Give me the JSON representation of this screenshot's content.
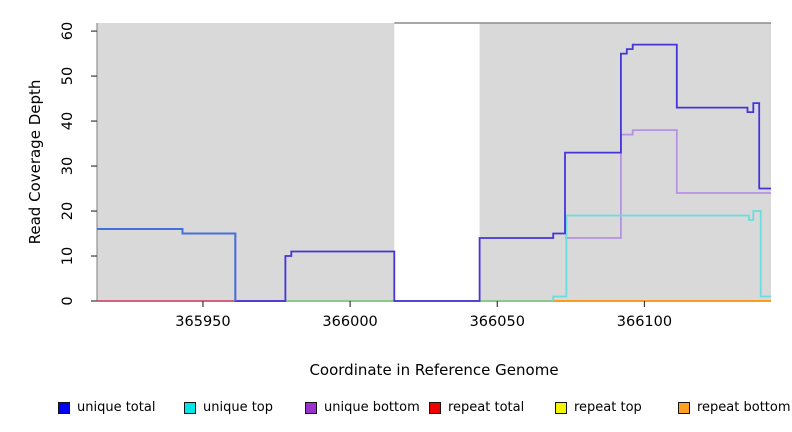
{
  "chart_data": {
    "type": "line",
    "subtype": "step",
    "title": "",
    "xlabel": "Coordinate in Reference Genome",
    "ylabel": "Read Coverage Depth",
    "xlim": [
      365914,
      366143
    ],
    "ylim": [
      0,
      61.8
    ],
    "x_ticks": [
      365950,
      366000,
      366050,
      366100
    ],
    "y_ticks": [
      0,
      10,
      20,
      30,
      40,
      50,
      60
    ],
    "grid": false,
    "legend_position": "bottom",
    "plot_bg_color": "#d9d9d9",
    "no_data_region": {
      "from": 366015,
      "to": 366044
    },
    "zero_line_segments": [
      {
        "name": "repeat total",
        "color": "#d04f6a",
        "from": 365914,
        "to": 365978,
        "value": 0
      },
      {
        "name": "unique top + repeat top overlap",
        "color": "#7cc67c",
        "from": 365978,
        "to": 366069,
        "value": 0
      },
      {
        "name": "repeat bottom",
        "color": "#ff9000",
        "from": 366069,
        "to": 366143,
        "value": 0
      }
    ],
    "series": [
      {
        "name": "unique bottom",
        "color": "#b692e3",
        "end": 366143,
        "steps": [
          [
            366073,
            14
          ],
          [
            366092,
            37
          ],
          [
            366096,
            38
          ],
          [
            366111,
            24
          ]
        ]
      },
      {
        "name": "unique top",
        "color": "#6adde0",
        "end": 366143,
        "steps": [
          [
            366069,
            0
          ],
          [
            366069,
            1
          ],
          [
            366073.5,
            19
          ],
          [
            366135.5,
            18
          ],
          [
            366137,
            20
          ],
          [
            366139.5,
            1
          ]
        ]
      },
      {
        "name": "unique total",
        "color": "#4634d9",
        "end": 366143,
        "steps": [
          [
            365914,
            16
          ],
          [
            365943,
            15
          ],
          [
            365961,
            0
          ],
          [
            365978,
            10
          ],
          [
            365980,
            11
          ],
          [
            366015,
            0
          ],
          [
            366044,
            14
          ],
          [
            366069,
            15
          ],
          [
            366073,
            33
          ],
          [
            366092,
            55
          ],
          [
            366094,
            56
          ],
          [
            366096,
            57
          ],
          [
            366111,
            43
          ],
          [
            366135,
            42
          ],
          [
            366137,
            44
          ],
          [
            366139,
            25
          ]
        ],
        "override_color": {
          "from": 365914,
          "to": 365961,
          "color": "#3d74dc"
        }
      }
    ]
  },
  "legend": {
    "items": [
      {
        "label": "unique total",
        "color": "#0000f5"
      },
      {
        "label": "unique top",
        "color": "#00e6e6"
      },
      {
        "label": "unique bottom",
        "color": "#9a32cd"
      },
      {
        "label": "repeat total",
        "color": "#f00000"
      },
      {
        "label": "repeat top",
        "color": "#f5f500"
      },
      {
        "label": "repeat bottom",
        "color": "#ffa022"
      }
    ]
  }
}
